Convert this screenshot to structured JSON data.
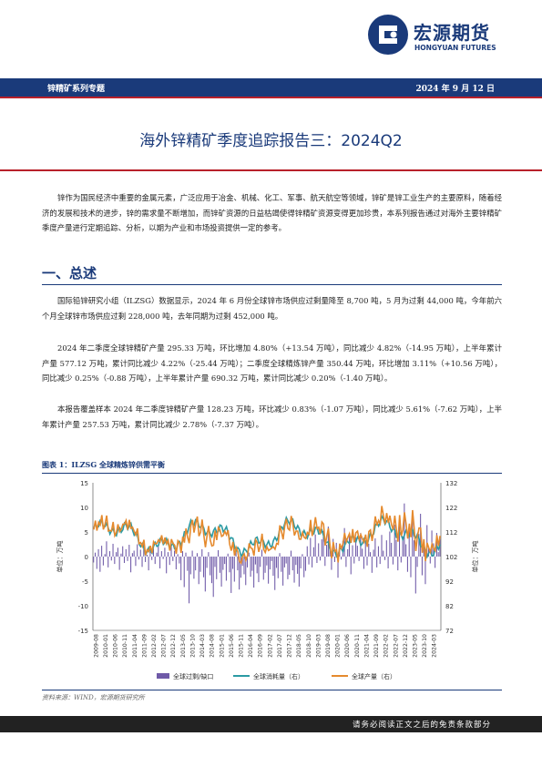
{
  "brand": {
    "name_cn": "宏源期货",
    "name_en": "HONGYUAN FUTURES",
    "color": "#1a3a7a",
    "accent": "#b8202a"
  },
  "header": {
    "series": "锌精矿系列专题",
    "date": "2024 年 9 月 12 日"
  },
  "title": "海外锌精矿季度追踪报告三：2024Q2",
  "intro": "锌作为国民经济中重要的金属元素，广泛应用于冶金、机械、化工、军事、航天航空等领域，锌矿是锌工业生产的主要原料，随着经济的发展和技术的进步，锌的需求量不断增加，而锌矿资源的日益枯竭使得锌精矿资源变得更加珍贵，本系列报告通过对海外主要锌精矿季度产量进行定期追踪、分析，以期为产业和市场投资提供一定的参考。",
  "section_title": "一、总述",
  "paragraphs": [
    "国际铅锌研究小组（ILZSG）数据显示，2024 年 6 月份全球锌市场供应过剩量降至 8,700 吨，5 月为过剩 44,000 吨，今年前六个月全球锌市场供应过剩 228,000 吨，去年同期为过剩 452,000 吨。",
    "2024 年二季度全球锌精矿产量 295.33 万吨，环比增加 4.80%（+13.54 万吨），同比减少 4.82%（-14.95 万吨），上半年累计产量 577.12 万吨，累计同比减少 4.22%（-25.44 万吨）；二季度全球精炼锌产量 350.44 万吨，环比增加 3.11%（+10.56 万吨），同比减少 0.25%（-0.88 万吨），上半年累计产量 690.32 万吨，累计同比减少 0.20%（-1.40 万吨）。",
    "本报告覆盖样本 2024 年二季度锌精矿产量 128.23 万吨，环比减少 0.83%（-1.07 万吨），同比减少 5.61%（-7.62 万吨），上半年累计产量 257.53 万吨，累计同比减少 2.78%（-7.37 万吨）。"
  ],
  "figure": {
    "title": "图表 1：ILZSG 全球精炼锌供需平衡",
    "source": "资料来源：WIND，宏源期货研究所"
  },
  "chart_data": {
    "type": "bar+line",
    "left_axis": {
      "label": "单位：万吨",
      "ticks": [
        -15,
        -10,
        -5,
        0,
        5,
        10,
        15
      ],
      "range": [
        -15,
        15
      ]
    },
    "right_axis": {
      "label": "单位：万吨",
      "ticks": [
        72,
        82,
        92,
        102,
        112,
        122,
        132
      ],
      "range": [
        72,
        132
      ]
    },
    "x_ticks": [
      "2009-08",
      "2010-01",
      "2010-06",
      "2010-11",
      "2011-04",
      "2011-09",
      "2012-02",
      "2012-07",
      "2012-12",
      "2013-05",
      "2013-10",
      "2014-03",
      "2014-08",
      "2015-01",
      "2015-06",
      "2015-11",
      "2016-04",
      "2016-09",
      "2017-02",
      "2017-07",
      "2017-12",
      "2018-05",
      "2018-10",
      "2019-03",
      "2019-08",
      "2020-01",
      "2020-06",
      "2020-11",
      "2021-04",
      "2021-09",
      "2022-02",
      "2022-07",
      "2022-12",
      "2023-05",
      "2023-10",
      "2024-03"
    ],
    "series": [
      {
        "name": "全球过剩/缺口",
        "axis": "left",
        "color": "#6f5aa8",
        "values": [
          -1.2,
          0.8,
          -2.5,
          1.5,
          -3.1,
          2.2,
          -1.8,
          0.5,
          3.1,
          -2.2,
          1.1,
          -0.8,
          2.6,
          -1.5,
          0.9,
          1.8,
          -2.7,
          0.6,
          2.1,
          -1.3,
          1.5,
          -0.9,
          2.4,
          -3.2,
          0.7,
          1.2,
          -1.9,
          2.5,
          -0.6,
          1.4,
          -2.1,
          3.3,
          -1.1,
          0.4,
          -2.8,
          1.9,
          -0.7,
          1.6,
          -1.5,
          0.8,
          2.1,
          -2.4,
          1.1,
          -0.5,
          1.8,
          -3.4,
          0.9,
          -1.7,
          2.3,
          -0.9,
          1.2,
          -2.6,
          0.5,
          -1.4,
          -4.8,
          1.1,
          -6.2,
          0.8,
          -2.9,
          -9.5,
          -3.6,
          1.2,
          -4.5,
          -2.8,
          0.7,
          -5.6,
          -3.1,
          1.5,
          -4.2,
          -7.1,
          -2.3,
          0.9,
          -3.8,
          -5.4,
          -8.2,
          -2.1,
          -4.6,
          1.3,
          -3.3,
          -6.1,
          -2.7,
          -1.5,
          -4.9,
          0.6,
          -3.2,
          -7.4,
          -2.5,
          -5.1,
          1.1,
          -2.8,
          -6.7,
          -4.3,
          -1.9,
          -3.6,
          -5.8,
          -2.2,
          0.8,
          -4.1,
          -2.9,
          -6.3,
          -1.6,
          -3.4,
          -5.2,
          -2.1,
          1.4,
          -4.7,
          -3.3,
          -1.8,
          -5.5,
          -2.6,
          -0.9,
          -3.9,
          -6.8,
          -2.3,
          -4.4,
          0.7,
          -3.1,
          -5.9,
          -2.2,
          -1.4,
          -4.6,
          -3.7,
          1.2,
          -2.8,
          -5.3,
          -1.7,
          -3.5,
          -6.1,
          -2.4,
          0.5,
          -4.2,
          -2.9,
          2.1,
          -1.6,
          3.8,
          -2.2,
          1.9,
          4.5,
          -1.3,
          2.7,
          -0.8,
          3.5,
          5.2,
          -1.9,
          2.4,
          6.1,
          1.3,
          -2.7,
          3.6,
          -1.1,
          2.8,
          -4.3,
          1.7,
          -0.6,
          3.2,
          5.8,
          -2.1,
          1.5,
          4.2,
          -3.6,
          2.3,
          -1.4,
          3.9,
          2.2,
          -0.9,
          4.8,
          1.6,
          -2.5,
          3.1,
          -1.8,
          2.6,
          0.9,
          -3.3,
          1.4,
          3.7,
          -2.2,
          2.1,
          -1.5,
          4.4,
          1.2,
          -0.7,
          3.3,
          -2.4,
          5.1,
          2.8,
          -1.6,
          6.5,
          3.4,
          -2.8,
          8.2,
          -1.2,
          4.1,
          10.8,
          2.5,
          -3.1,
          5.6,
          -4.2,
          9.1,
          3.3,
          -7.5,
          -2.1,
          4.6,
          8.7,
          -3.8,
          2.2,
          -5.6,
          6.4,
          1.8,
          -1.4,
          5.3,
          2.7,
          -2.3,
          4.8,
          0.9,
          3.6
        ],
        "note": "approximate monthly readings estimated from bar heights"
      },
      {
        "name": "全球消耗量（右）",
        "axis": "right",
        "color": "#2b9aa3"
      },
      {
        "name": "全球产量（右）",
        "axis": "right",
        "color": "#e58a2e"
      }
    ],
    "legend_position": "bottom",
    "grid": false
  },
  "footer": "请务必阅读正文之后的免责条款部分"
}
